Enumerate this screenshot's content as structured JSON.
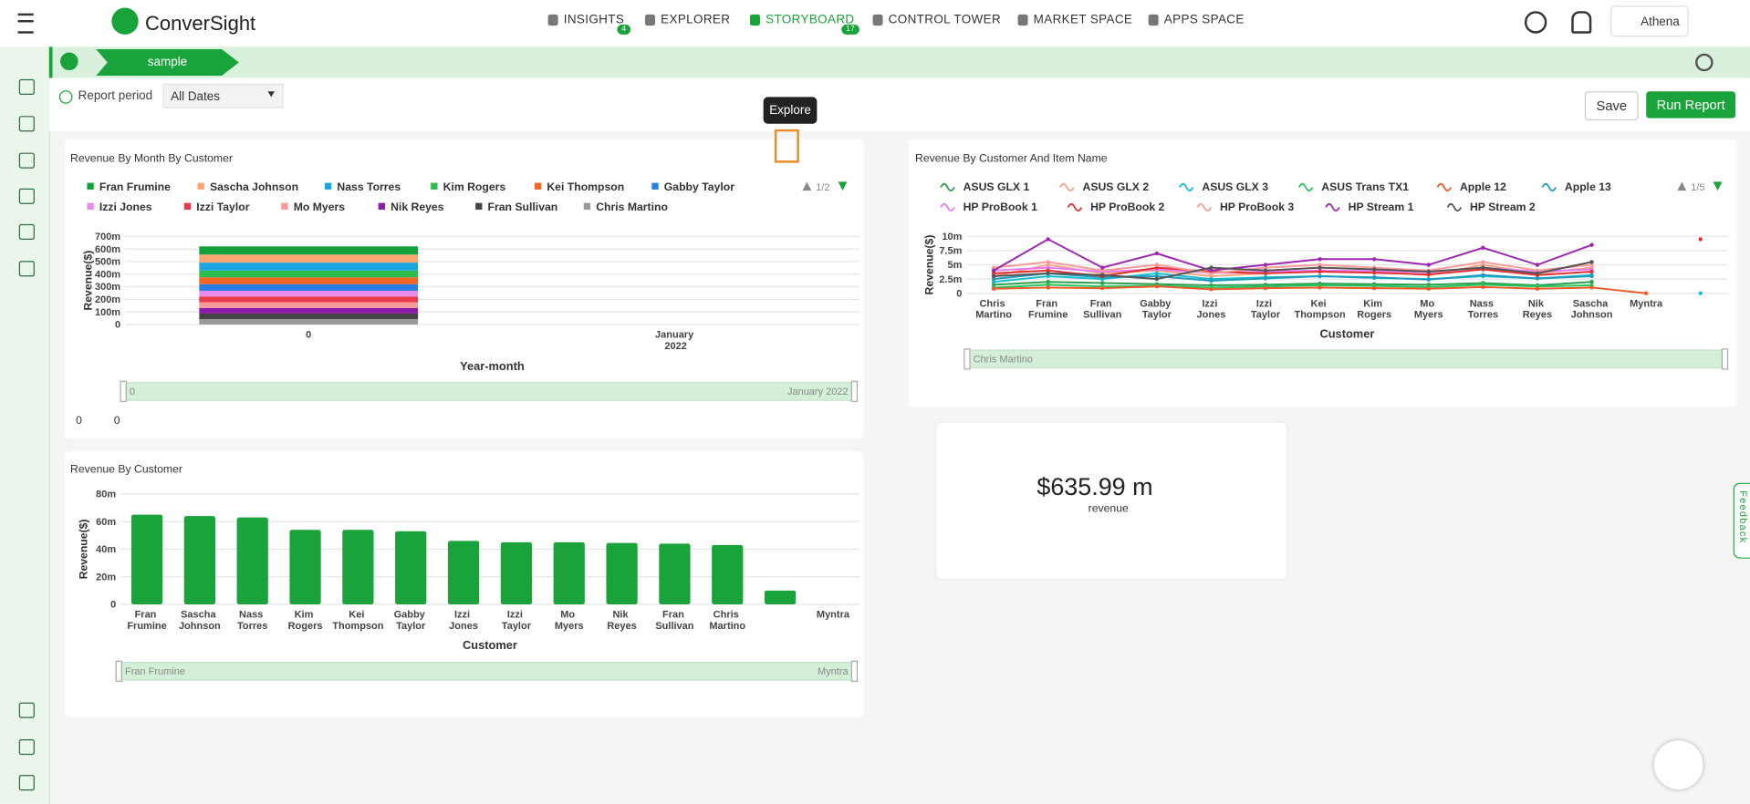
{
  "brand": "ConverSight",
  "nav": [
    {
      "label": "INSIGHTS",
      "badge": "4"
    },
    {
      "label": "EXPLORER"
    },
    {
      "label": "STORYBOARD",
      "badge": "17"
    },
    {
      "label": "CONTROL TOWER"
    },
    {
      "label": "MARKET SPACE"
    },
    {
      "label": "APPS SPACE"
    }
  ],
  "user": "Athena",
  "tab": "sample",
  "filter": {
    "label": "Report period",
    "value": "All Dates"
  },
  "buttons": {
    "save": "Save",
    "run": "Run Report"
  },
  "tooltip": "Explore",
  "feedback": "Feedback",
  "kpi": {
    "value": "$635.99 m",
    "label": "revenue"
  },
  "reactions": {
    "likes": "0",
    "comments": "0"
  },
  "charts": [
    {
      "type": "stacked_bar",
      "title": "Revenue By Month By Customer",
      "x_label": "Year-month",
      "y_label": "Revenue($)",
      "legend_page": "1/2",
      "categories": [
        "0",
        "January 2022"
      ],
      "slider": {
        "start": "0",
        "end": "January 2022"
      },
      "ylim": [
        0,
        700
      ],
      "yticks": [
        0,
        {
          "value": 100,
          "label": "100m"
        },
        {
          "value": 200,
          "label": "200m"
        },
        {
          "value": 300,
          "label": "300m"
        },
        {
          "value": 400,
          "label": "400m"
        },
        {
          "value": 500,
          "label": "500m"
        },
        {
          "value": 600,
          "label": "600m"
        },
        {
          "value": 700,
          "label": "700m"
        }
      ],
      "series": [
        {
          "name": "Fran Frumine",
          "color": "#12a13a",
          "values": [
            65,
            null
          ]
        },
        {
          "name": "Sascha Johnson",
          "color": "#f7a872",
          "values": [
            64,
            null
          ]
        },
        {
          "name": "Nass Torres",
          "color": "#1ba6e0",
          "values": [
            63,
            null
          ]
        },
        {
          "name": "Kim Rogers",
          "color": "#2ebd4c",
          "values": [
            54,
            null
          ]
        },
        {
          "name": "Kei Thompson",
          "color": "#f26522",
          "values": [
            54,
            null
          ]
        },
        {
          "name": "Gabby Taylor",
          "color": "#2a7de1",
          "values": [
            53,
            null
          ]
        },
        {
          "name": "Izzi Jones",
          "color": "#e88ae8",
          "values": [
            46,
            null
          ]
        },
        {
          "name": "Izzi Taylor",
          "color": "#e6394a",
          "values": [
            45,
            null
          ]
        },
        {
          "name": "Mo Myers",
          "color": "#f59a9a",
          "values": [
            45,
            null
          ]
        },
        {
          "name": "Nik Reyes",
          "color": "#8e1aa8",
          "values": [
            44.5,
            null
          ]
        },
        {
          "name": "Fran Sullivan",
          "color": "#444444",
          "values": [
            44,
            null
          ]
        },
        {
          "name": "Chris Martino",
          "color": "#999999",
          "values": [
            43,
            null
          ]
        }
      ]
    },
    {
      "type": "line",
      "title": "Revenue By Customer And Item Name",
      "x_label": "Customer",
      "y_label": "Revenue($)",
      "legend_page": "1/5",
      "categories": [
        "Chris Martino",
        "Fran Frumine",
        "Fran Sullivan",
        "Gabby Taylor",
        "Izzi Jones",
        "Izzi Taylor",
        "Kei Thompson",
        "Kim Rogers",
        "Mo Myers",
        "Nass Torres",
        "Nik Reyes",
        "Sascha Johnson",
        "Myntra",
        null
      ],
      "slider": {
        "start": "Chris Martino"
      },
      "ylim": [
        0,
        10
      ],
      "yticks": [
        0,
        {
          "value": 2.5,
          "label": "2.5m"
        },
        {
          "value": 5,
          "label": "5m"
        },
        {
          "value": 7.5,
          "label": "7.5m"
        },
        {
          "value": 10,
          "label": "10m"
        }
      ],
      "series": [
        {
          "name": "ASUS GLX 1",
          "color": "#2e9e4f",
          "values": [
            1.5,
            2,
            1.8,
            1.6,
            1.4,
            1.5,
            1.7,
            1.6,
            1.5,
            1.8,
            1.4,
            2,
            null,
            null
          ]
        },
        {
          "name": "ASUS GLX 2",
          "color": "#f4a582",
          "values": [
            3,
            5,
            3.5,
            4,
            3,
            3.5,
            4,
            3.8,
            3.2,
            5,
            3.5,
            4.5,
            null,
            null
          ]
        },
        {
          "name": "ASUS GLX 3",
          "color": "#17becf",
          "values": [
            2,
            3,
            2.5,
            3.5,
            2.5,
            2.8,
            3,
            2.7,
            2.5,
            3,
            2.6,
            3.2,
            null,
            0
          ]
        },
        {
          "name": "ASUS Trans TX1",
          "color": "#22c55e",
          "values": [
            1,
            1.5,
            1.2,
            1.3,
            1,
            1.2,
            1.4,
            1.3,
            1.1,
            1.5,
            1.2,
            1.4,
            null,
            null
          ]
        },
        {
          "name": "Apple 12",
          "color": "#f05a28",
          "values": [
            0.8,
            1,
            0.9,
            1.2,
            0.7,
            0.9,
            1,
            0.9,
            0.8,
            1.1,
            0.8,
            1,
            0,
            null
          ]
        },
        {
          "name": "Apple 13",
          "color": "#1f9bbd",
          "values": [
            2.5,
            3.5,
            2.8,
            3,
            2.2,
            2.6,
            3,
            2.8,
            2.4,
            3.2,
            2.6,
            3,
            null,
            null
          ]
        },
        {
          "name": "HP ProBook 1",
          "color": "#e879f9",
          "values": [
            4,
            4.5,
            3.8,
            4.2,
            3.6,
            3.8,
            4,
            3.9,
            3.7,
            4.5,
            3.8,
            4.2,
            null,
            null
          ]
        },
        {
          "name": "HP ProBook 2",
          "color": "#e03131",
          "values": [
            3.5,
            4,
            3,
            4.5,
            3.8,
            3.5,
            3.8,
            3.6,
            3.3,
            4.2,
            3.2,
            3.8,
            null,
            9.5
          ]
        },
        {
          "name": "HP ProBook 3",
          "color": "#fb9a99",
          "values": [
            4.5,
            5.5,
            4,
            5,
            3.5,
            4.5,
            5,
            4.5,
            4,
            5.5,
            4,
            5,
            null,
            null
          ]
        },
        {
          "name": "HP Stream 1",
          "color": "#9c27b0",
          "values": [
            4,
            9.5,
            4.5,
            7,
            4,
            5,
            6,
            6,
            5,
            8,
            5,
            8.5,
            null,
            null
          ]
        },
        {
          "name": "HP Stream 2",
          "color": "#555555",
          "values": [
            3,
            3.5,
            3.2,
            2.5,
            4.5,
            4,
            4.5,
            4.2,
            3.8,
            4.5,
            3.5,
            5.5,
            null,
            null
          ]
        }
      ]
    },
    {
      "type": "bar",
      "title": "Revenue By Customer",
      "x_label": "Customer",
      "y_label": "Revenue($)",
      "color": "#1aa33a",
      "categories": [
        "Fran Frumine",
        "Sascha Johnson",
        "Nass Torres",
        "Kim Rogers",
        "Kei Thompson",
        "Gabby Taylor",
        "Izzi Jones",
        "Izzi Taylor",
        "Mo Myers",
        "Nik Reyes",
        "Fran Sullivan",
        "Chris Martino",
        null,
        "Myntra"
      ],
      "values": [
        65,
        64,
        63,
        54,
        54,
        53,
        46,
        45,
        45,
        44.5,
        44,
        43,
        10,
        0
      ],
      "slider": {
        "start": "Fran Frumine",
        "end": "Myntra"
      },
      "ylim": [
        0,
        80
      ],
      "yticks": [
        0,
        {
          "value": 20,
          "label": "20m"
        },
        {
          "value": 40,
          "label": "40m"
        },
        {
          "value": 60,
          "label": "60m"
        },
        {
          "value": 80,
          "label": "80m"
        }
      ]
    }
  ]
}
